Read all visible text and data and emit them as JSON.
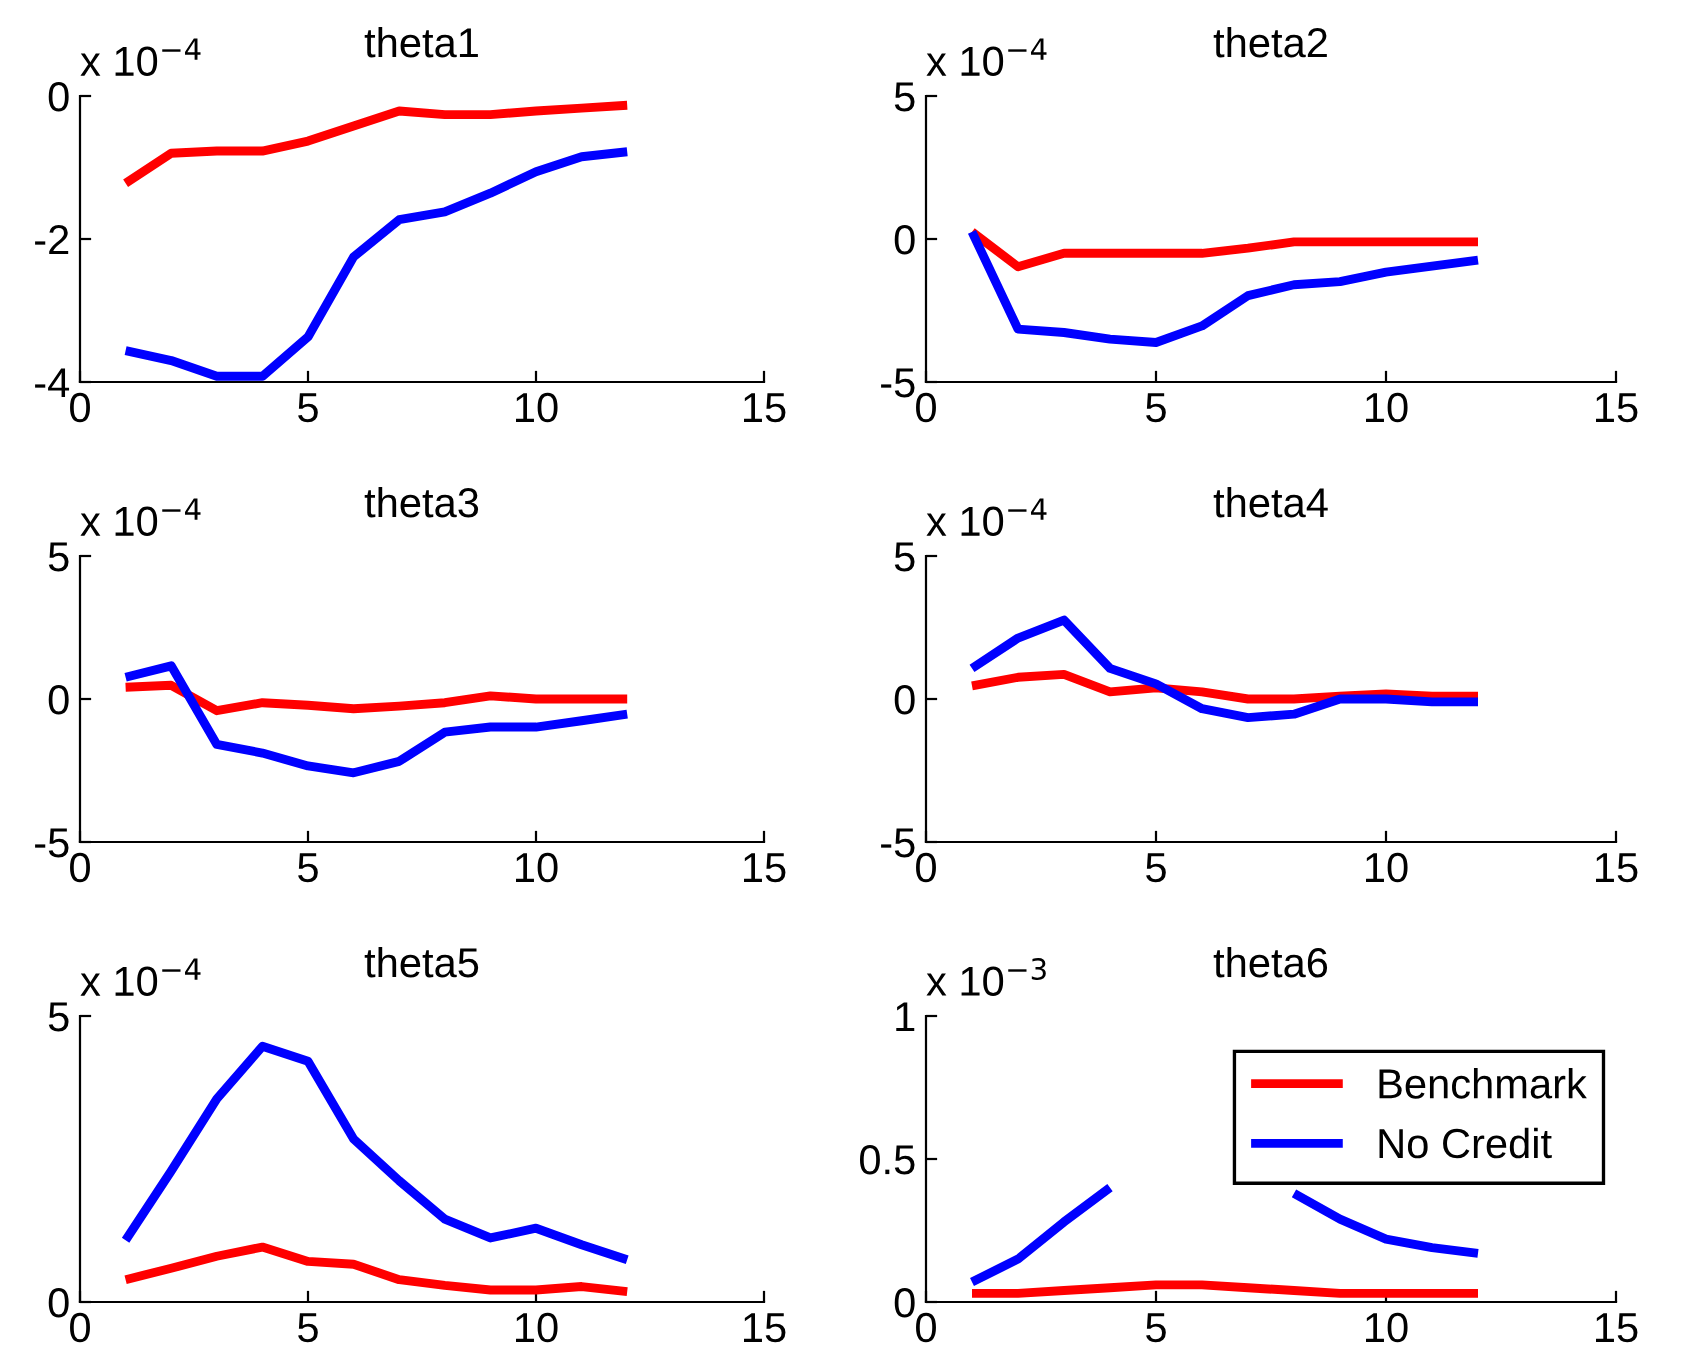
{
  "chart_data": [
    {
      "type": "line",
      "title": "theta1",
      "annotations": [
        "x 10$^{−4}$"
      ],
      "x": [
        1,
        2,
        3,
        4,
        5,
        6,
        7,
        8,
        9,
        10,
        11,
        12
      ],
      "xlim": [
        0,
        15
      ],
      "xticks": [
        0,
        5,
        10,
        15
      ],
      "ylim": [
        -4,
        0
      ],
      "yticks": [
        -4,
        -2,
        0
      ],
      "grid": false,
      "legend": false,
      "series": [
        {
          "color": "#ff0000",
          "values": [
            -1.22,
            -0.8,
            -0.77,
            -0.77,
            -0.63,
            -0.42,
            -0.21,
            -0.26,
            -0.26,
            -0.21,
            -0.17,
            -0.13
          ]
        },
        {
          "color": "#0000ff",
          "values": [
            -3.56,
            -3.7,
            -3.92,
            -3.92,
            -3.37,
            -2.25,
            -1.73,
            -1.62,
            -1.36,
            -1.06,
            -0.85,
            -0.78
          ]
        }
      ]
    },
    {
      "type": "line",
      "title": "theta2",
      "annotations": [
        "x 10$^{−4}$"
      ],
      "x": [
        1,
        2,
        3,
        4,
        5,
        6,
        7,
        8,
        9,
        10,
        11,
        12
      ],
      "xlim": [
        0,
        15
      ],
      "xticks": [
        0,
        5,
        10,
        15
      ],
      "ylim": [
        -5,
        5
      ],
      "yticks": [
        -5,
        0,
        5
      ],
      "grid": false,
      "legend": false,
      "series": [
        {
          "color": "#ff0000",
          "values": [
            0.25,
            -0.97,
            -0.5,
            -0.5,
            -0.5,
            -0.5,
            -0.32,
            -0.1,
            -0.1,
            -0.1,
            -0.1,
            -0.1
          ]
        },
        {
          "color": "#0000ff",
          "values": [
            0.25,
            -3.15,
            -3.27,
            -3.5,
            -3.62,
            -3.04,
            -1.98,
            -1.6,
            -1.49,
            -1.16,
            -0.95,
            -0.74
          ]
        }
      ]
    },
    {
      "type": "line",
      "title": "theta3",
      "annotations": [
        "x 10$^{−4}$"
      ],
      "x": [
        1,
        2,
        3,
        4,
        5,
        6,
        7,
        8,
        9,
        10,
        11,
        12
      ],
      "xlim": [
        0,
        15
      ],
      "xticks": [
        0,
        5,
        10,
        15
      ],
      "ylim": [
        -5,
        5
      ],
      "yticks": [
        -5,
        0,
        5
      ],
      "grid": false,
      "legend": false,
      "series": [
        {
          "color": "#ff0000",
          "values": [
            0.41,
            0.48,
            -0.41,
            -0.13,
            -0.22,
            -0.34,
            -0.25,
            -0.13,
            0.11,
            0,
            0,
            0
          ]
        },
        {
          "color": "#0000ff",
          "values": [
            0.76,
            1.16,
            -1.59,
            -1.89,
            -2.34,
            -2.58,
            -2.18,
            -1.16,
            -0.98,
            -0.98,
            -0.76,
            -0.53
          ]
        }
      ]
    },
    {
      "type": "line",
      "title": "theta4",
      "annotations": [
        "x 10$^{−4}$"
      ],
      "x": [
        1,
        2,
        3,
        4,
        5,
        6,
        7,
        8,
        9,
        10,
        11,
        12
      ],
      "xlim": [
        0,
        15
      ],
      "xticks": [
        0,
        5,
        10,
        15
      ],
      "ylim": [
        -5,
        5
      ],
      "yticks": [
        -5,
        0,
        5
      ],
      "grid": false,
      "legend": false,
      "series": [
        {
          "color": "#ff0000",
          "values": [
            0.46,
            0.76,
            0.86,
            0.25,
            0.39,
            0.25,
            0,
            0,
            0.1,
            0.18,
            0.1,
            0.1
          ]
        },
        {
          "color": "#0000ff",
          "values": [
            1.07,
            2.13,
            2.76,
            1.07,
            0.53,
            -0.34,
            -0.65,
            -0.53,
            0,
            0,
            -0.1,
            -0.1
          ]
        }
      ]
    },
    {
      "type": "line",
      "title": "theta5",
      "annotations": [
        "x 10$^{−4}$"
      ],
      "x": [
        1,
        2,
        3,
        4,
        5,
        6,
        7,
        8,
        9,
        10,
        11,
        12
      ],
      "xlim": [
        0,
        15
      ],
      "xticks": [
        0,
        5,
        10,
        15
      ],
      "ylim": [
        0,
        5
      ],
      "yticks": [
        0,
        5
      ],
      "grid": false,
      "legend": false,
      "series": [
        {
          "color": "#ff0000",
          "values": [
            0.39,
            0.59,
            0.8,
            0.96,
            0.71,
            0.66,
            0.39,
            0.29,
            0.21,
            0.21,
            0.27,
            0.18
          ]
        },
        {
          "color": "#0000ff",
          "values": [
            1.08,
            2.29,
            3.55,
            4.47,
            4.21,
            2.85,
            2.12,
            1.45,
            1.12,
            1.29,
            1.0,
            0.74
          ]
        }
      ]
    },
    {
      "type": "line",
      "title": "theta6",
      "annotations": [
        "x 10$^{−3}$"
      ],
      "x": [
        1,
        2,
        3,
        4,
        5,
        6,
        7,
        8,
        9,
        10,
        11,
        12
      ],
      "xlim": [
        0,
        15
      ],
      "xticks": [
        0,
        5,
        10,
        15
      ],
      "ylim": [
        0,
        1
      ],
      "yticks": [
        0,
        0.5,
        1
      ],
      "grid": false,
      "legend": "top right",
      "series": [
        {
          "name": "Benchmark",
          "color": "#ff0000",
          "values": [
            0.03,
            0.03,
            0.04,
            0.05,
            0.06,
            0.06,
            0.05,
            0.04,
            0.03,
            0.03,
            0.03,
            0.03
          ]
        },
        {
          "name": "No Credit",
          "color": "#0000ff",
          "values": [
            0.07,
            0.15,
            0.28,
            0.4,
            null,
            null,
            null,
            0.38,
            0.29,
            0.22,
            0.19,
            0.17
          ]
        }
      ]
    }
  ]
}
